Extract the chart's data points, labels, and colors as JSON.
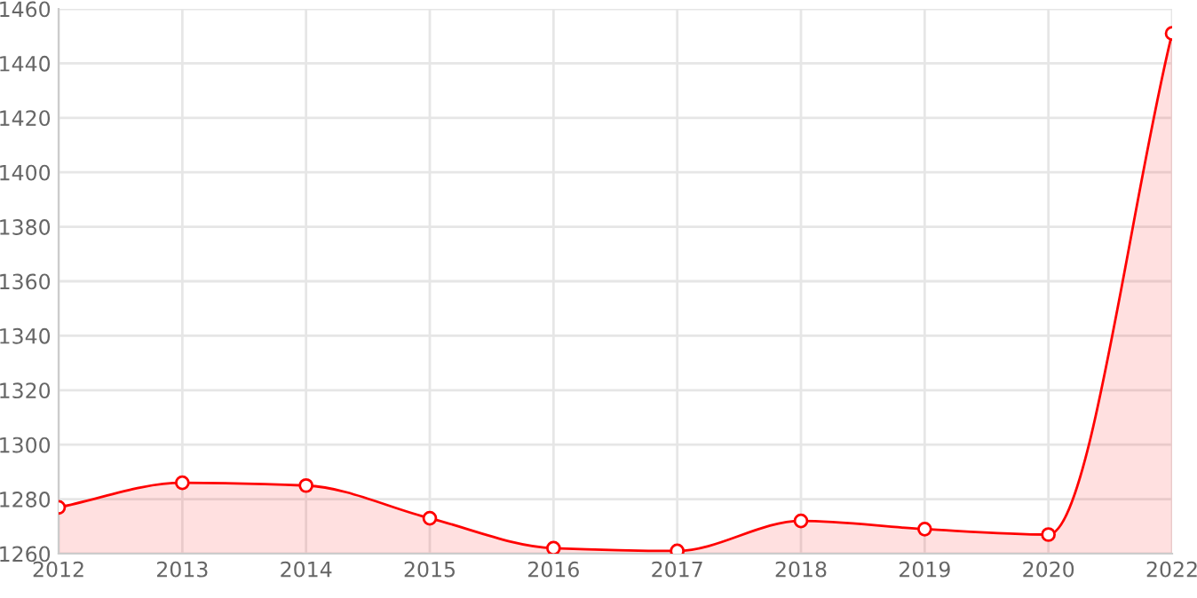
{
  "chart_data": {
    "type": "area",
    "categories": [
      "2012",
      "2013",
      "2014",
      "2015",
      "2016",
      "2017",
      "2018",
      "2019",
      "2020",
      "2022"
    ],
    "series": [
      {
        "color": "#ff0000",
        "values": [
          1277,
          1286,
          1285,
          1273,
          1262,
          1261,
          1272,
          1269,
          1267,
          1451
        ]
      }
    ],
    "ylim": [
      1260,
      1460
    ],
    "yticks": [
      1260,
      1280,
      1300,
      1320,
      1340,
      1360,
      1380,
      1400,
      1420,
      1440,
      1460
    ],
    "grid": true,
    "marker": "circle",
    "line_style": "solid"
  }
}
